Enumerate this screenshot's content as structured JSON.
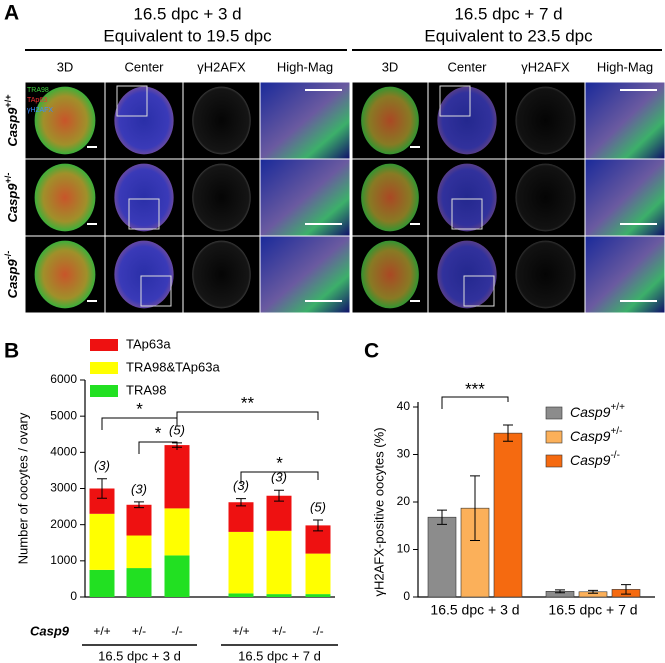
{
  "panel_a": {
    "label": "A",
    "groups": [
      {
        "title": "16.5 dpc + 3 d",
        "subtitle": "Equivalent to 19.5 dpc"
      },
      {
        "title": "16.5 dpc + 7 d",
        "subtitle": "Equivalent to 23.5 dpc"
      }
    ],
    "columns": [
      "3D",
      "Center",
      "γH2AFX",
      "High-Mag"
    ],
    "rows": [
      {
        "gene": "Casp9",
        "genotype": "+/+"
      },
      {
        "gene": "Casp9",
        "genotype": "+/-"
      },
      {
        "gene": "Casp9",
        "genotype": "-/-"
      }
    ],
    "channel_labels": [
      "TRA98",
      "TAp63",
      "γH2AFX"
    ]
  },
  "panel_b_label": "B",
  "panel_c_label": "C",
  "chart_data": [
    {
      "type": "stacked_bar",
      "y_label": "Number of oocytes / ovary",
      "x_label": "Casp9",
      "categories": [
        "+/+",
        "+/-",
        "-/-",
        "+/+",
        "+/-",
        "-/-"
      ],
      "groups": [
        "16.5 dpc + 3 d",
        "16.5 dpc + 7 d"
      ],
      "series": [
        {
          "name": "TRA98",
          "color": "#22e022",
          "values": [
            750,
            800,
            1150,
            100,
            80,
            80
          ]
        },
        {
          "name": "TRA98&TAp63a",
          "color": "#ffff00",
          "values": [
            1550,
            900,
            1300,
            1700,
            1750,
            1120
          ]
        },
        {
          "name": "TAp63a",
          "color": "#ee1111",
          "values": [
            700,
            850,
            1750,
            820,
            970,
            780
          ]
        }
      ],
      "errors": [
        270,
        80,
        60,
        100,
        150,
        150
      ],
      "n_labels": [
        "(3)",
        "(3)",
        "(5)",
        "(3)",
        "(3)",
        "(5)"
      ],
      "significance": [
        "*",
        "*",
        "**",
        "*"
      ],
      "ylim": [
        0,
        6000
      ],
      "yticks": [
        0,
        1000,
        2000,
        3000,
        4000,
        5000,
        6000
      ]
    },
    {
      "type": "grouped_bar",
      "y_label": "γH2AFX-positive oocytes (%)",
      "categories": [
        "16.5 dpc + 3 d",
        "16.5 dpc + 7 d"
      ],
      "series": [
        {
          "name": "Casp9",
          "superscript": "+/+",
          "color": "#8c8c8c",
          "values": [
            16.8,
            1.2
          ],
          "errors": [
            1.5,
            0.3
          ]
        },
        {
          "name": "Casp9",
          "superscript": "+/-",
          "color": "#fbb05a",
          "values": [
            18.7,
            1.1
          ],
          "errors": [
            6.8,
            0.3
          ]
        },
        {
          "name": "Casp9",
          "superscript": "-/-",
          "color": "#f56a10",
          "values": [
            34.5,
            1.6
          ],
          "errors": [
            1.7,
            1.0
          ]
        }
      ],
      "significance": [
        "***"
      ],
      "ylim": [
        0,
        40
      ],
      "yticks": [
        0,
        10,
        20,
        30,
        40
      ]
    }
  ]
}
